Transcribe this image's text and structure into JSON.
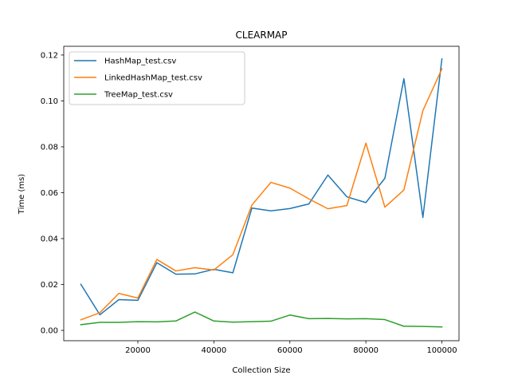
{
  "chart_data": {
    "type": "line",
    "title": "CLEARMAP",
    "xlabel": "Collection Size",
    "ylabel": "Time (ms)",
    "xlim": [
      500,
      104500
    ],
    "ylim": [
      -0.0045,
      0.1238
    ],
    "xticks": [
      20000,
      40000,
      60000,
      80000,
      100000
    ],
    "xtick_labels": [
      "20000",
      "40000",
      "60000",
      "80000",
      "100000"
    ],
    "yticks": [
      0.0,
      0.02,
      0.04,
      0.06,
      0.08,
      0.1,
      0.12
    ],
    "ytick_labels": [
      "0.00",
      "0.02",
      "0.04",
      "0.06",
      "0.08",
      "0.10",
      "0.12"
    ],
    "grid": false,
    "legend_position": "top-left",
    "x": [
      5000,
      10000,
      15000,
      20000,
      25000,
      30000,
      35000,
      40000,
      45000,
      50000,
      55000,
      60000,
      65000,
      70000,
      75000,
      80000,
      85000,
      90000,
      95000,
      100000
    ],
    "series": [
      {
        "name": "HashMap_test.csv",
        "color": "#1f77b4",
        "values": [
          0.0201,
          0.0068,
          0.0134,
          0.0131,
          0.0295,
          0.0245,
          0.0246,
          0.0266,
          0.0251,
          0.0533,
          0.0521,
          0.0531,
          0.0551,
          0.0677,
          0.0582,
          0.0557,
          0.0663,
          0.1097,
          0.0492,
          0.1183
        ]
      },
      {
        "name": "LinkedHashMap_test.csv",
        "color": "#ff7f0e",
        "values": [
          0.0046,
          0.0077,
          0.0161,
          0.0141,
          0.0309,
          0.0259,
          0.0273,
          0.0263,
          0.033,
          0.0546,
          0.0645,
          0.062,
          0.0573,
          0.053,
          0.0544,
          0.0816,
          0.0537,
          0.0612,
          0.0958,
          0.114
        ]
      },
      {
        "name": "TreeMap_test.csv",
        "color": "#2ca02c",
        "values": [
          0.0025,
          0.0035,
          0.0035,
          0.0038,
          0.0037,
          0.0041,
          0.008,
          0.0041,
          0.0036,
          0.0038,
          0.004,
          0.0067,
          0.0051,
          0.0052,
          0.005,
          0.0051,
          0.0047,
          0.0018,
          0.0017,
          0.0015
        ]
      }
    ]
  }
}
